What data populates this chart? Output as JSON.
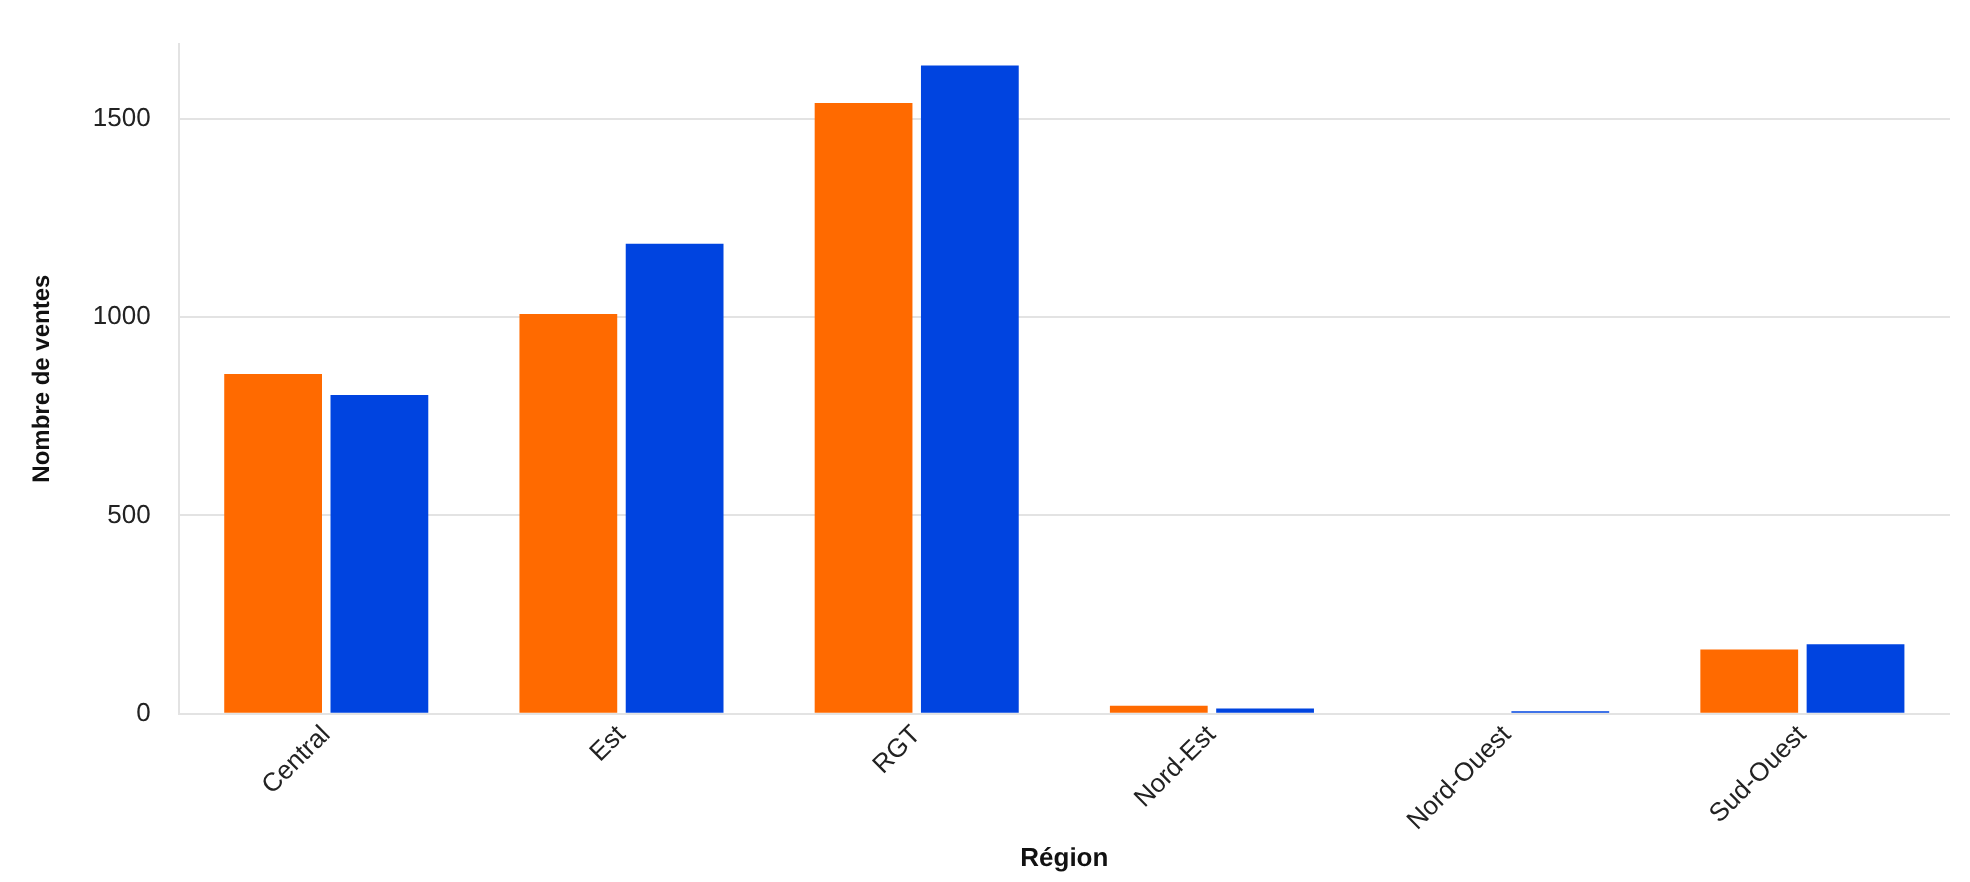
{
  "chart_data": {
    "type": "bar",
    "xlabel": "Région",
    "ylabel": "Nombre de ventes",
    "categories": [
      "Central",
      "Est",
      "RGT",
      "Nord-Est",
      "Nord-Ouest",
      "Sud-Ouest"
    ],
    "series": [
      {
        "color": "#ff6a00",
        "values": [
          857,
          1008,
          1540,
          20,
          0,
          162
        ]
      },
      {
        "color": "#0044e0",
        "values": [
          804,
          1185,
          1635,
          13,
          6,
          175
        ]
      }
    ],
    "ylim": [
      0,
      1690
    ],
    "yticks": [
      0,
      500,
      1000,
      1500
    ],
    "grid": "y",
    "legend": false
  }
}
